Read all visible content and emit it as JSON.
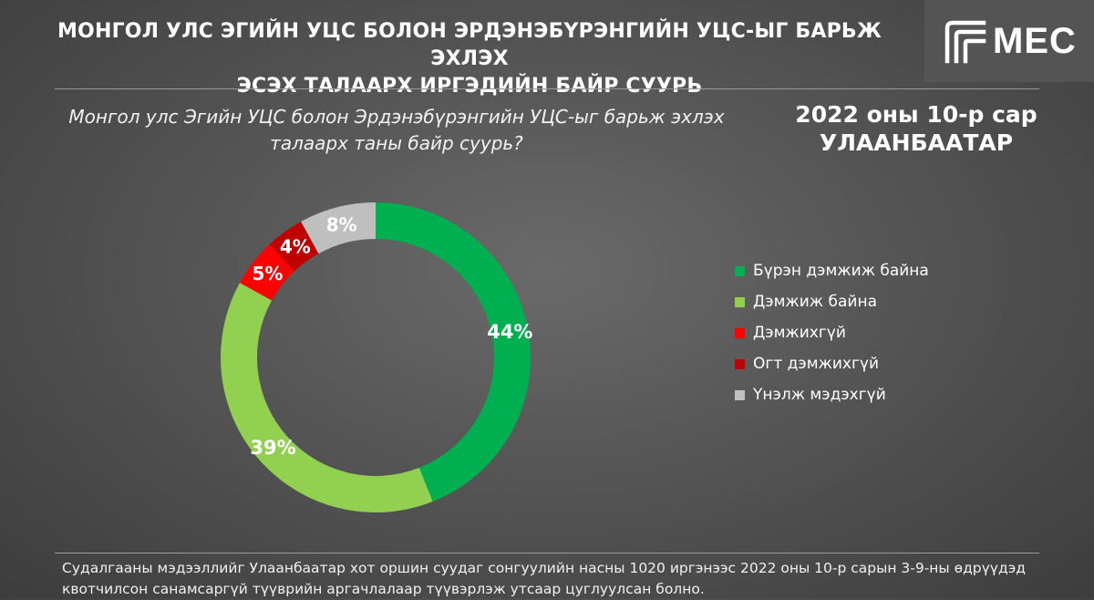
{
  "header": {
    "title_line1": "МОНГОЛ УЛС ЭГИЙН УЦС БОЛОН ЭРДЭНЭБҮРЭНГИЙН УЦС-ЫГ БАРЬЖ ЭХЛЭХ",
    "title_line2": "ЭСЭХ ТАЛААРХ ИРГЭДИЙН БАЙР СУУРЬ",
    "logo_text": "MEC",
    "date_line1": "2022 оны 10-р сар",
    "date_line2": "УЛААНБААТАР"
  },
  "question": {
    "line1": "Монгол улс Эгийн УЦС болон Эрдэнэбүрэнгийн УЦС-ыг барьж эхлэх",
    "line2": "талаарх таны байр суурь?"
  },
  "chart_data": {
    "type": "pie",
    "donut": true,
    "categories": [
      "Бүрэн дэмжиж байна",
      "Дэмжиж байна",
      "Дэмжихгүй",
      "Огт дэмжихгүй",
      "Үнэлж мэдэхгүй"
    ],
    "values": [
      44,
      39,
      5,
      4,
      8
    ],
    "labels": [
      "44%",
      "39%",
      "5%",
      "4%",
      "8%"
    ],
    "colors": [
      "#00b050",
      "#92d050",
      "#ff0000",
      "#c00000",
      "#bfbfbf"
    ],
    "legend_position": "right"
  },
  "footnote": {
    "line1": "Судалгааны мэдээллийг Улаанбаатар хот оршин суудаг сонгуулийн насны 1020 иргэнээс 2022 оны 10-р сарын 3-9-ны өдрүүдэд",
    "line2": "квотчилсон санамсаргүй түүврийн аргачлалаар түүвэрлэж утсаар цуглуулсан болно."
  }
}
